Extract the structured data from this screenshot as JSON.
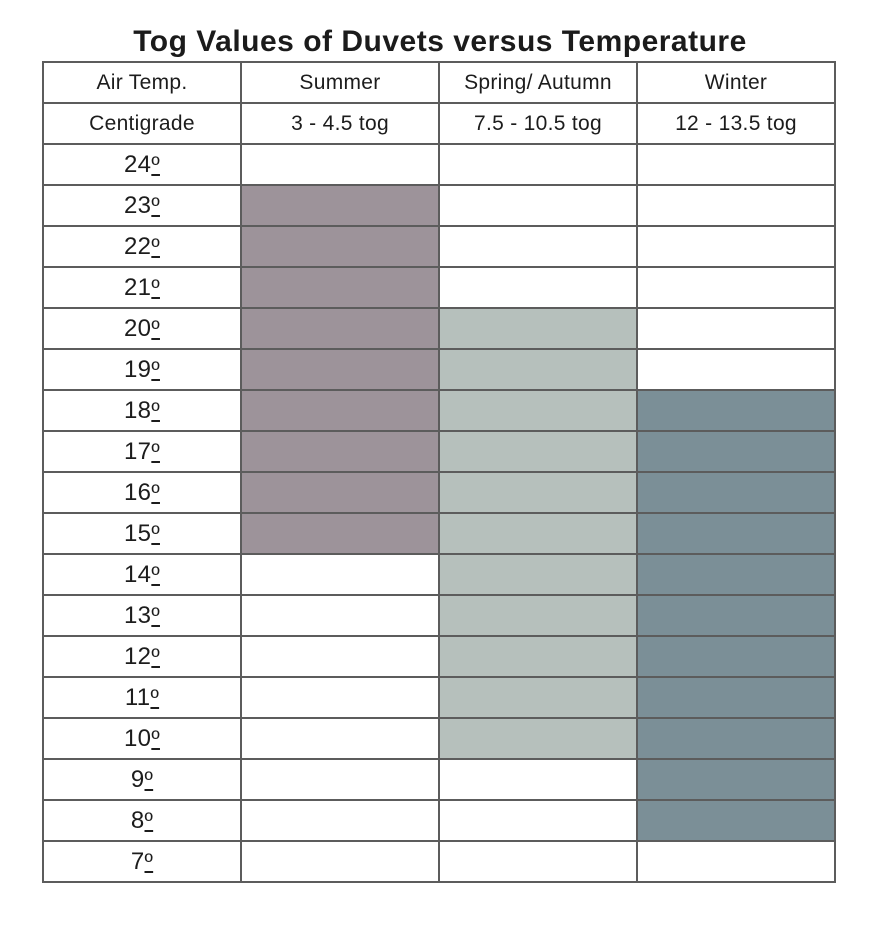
{
  "title": "Tog Values of Duvets versus Temperature",
  "chart_data": {
    "type": "table",
    "title": "Tog Values of Duvets versus Temperature",
    "degree_symbol": "º",
    "temperatures": [
      24,
      23,
      22,
      21,
      20,
      19,
      18,
      17,
      16,
      15,
      14,
      13,
      12,
      11,
      10,
      9,
      8,
      7
    ],
    "columns": [
      {
        "id": "air-temp",
        "header": "Air Temp.",
        "subheader": "Centigrade"
      },
      {
        "id": "summer",
        "header": "Summer",
        "subheader": "3 - 4.5 tog",
        "fill_color": "#9d939a",
        "fill_temp_max": 23,
        "fill_temp_min": 15
      },
      {
        "id": "spring-autumn",
        "header": "Spring/ Autumn",
        "subheader": "7.5 - 10.5 tog",
        "fill_color": "#b6c0bc",
        "fill_temp_max": 20,
        "fill_temp_min": 10
      },
      {
        "id": "winter",
        "header": "Winter",
        "subheader": "12 - 13.5 tog",
        "fill_color": "#7b8f97",
        "fill_temp_max": 18,
        "fill_temp_min": 8
      }
    ],
    "colors": {
      "border": "#5c5c5c",
      "text": "#1c1c1c",
      "background": "#ffffff"
    },
    "layout": {
      "legend": "none",
      "grid": "all-cell-borders",
      "bar_orientation": "vertical-span-of-rows"
    }
  }
}
